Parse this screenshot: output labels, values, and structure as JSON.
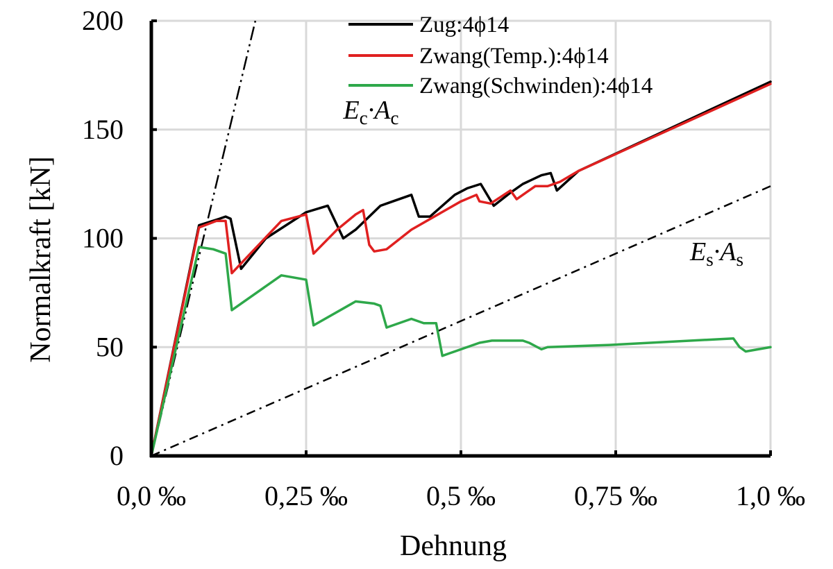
{
  "chart_data": {
    "type": "line",
    "xlabel": "Dehnung",
    "ylabel": "Normalkraft [kN]",
    "xlim": [
      0,
      1.0
    ],
    "ylim": [
      0,
      200
    ],
    "grid": true,
    "legend_position": "top-right",
    "x_ticks": [
      {
        "value": 0,
        "label": "0,0 ‰"
      },
      {
        "value": 0.25,
        "label": "0,25 ‰"
      },
      {
        "value": 0.5,
        "label": "0,5 ‰"
      },
      {
        "value": 0.75,
        "label": "0,75 ‰"
      },
      {
        "value": 1.0,
        "label": "1,0 ‰"
      }
    ],
    "y_ticks": [
      {
        "value": 0,
        "label": "0"
      },
      {
        "value": 50,
        "label": "50"
      },
      {
        "value": 100,
        "label": "100"
      },
      {
        "value": 150,
        "label": "150"
      },
      {
        "value": 200,
        "label": "200"
      }
    ],
    "series": [
      {
        "name": "Zug:4ϕ14",
        "color": "#000000",
        "points": [
          [
            0,
            0
          ],
          [
            0.077,
            106
          ],
          [
            0.11,
            109
          ],
          [
            0.12,
            110
          ],
          [
            0.128,
            109
          ],
          [
            0.145,
            86
          ],
          [
            0.185,
            100
          ],
          [
            0.25,
            112
          ],
          [
            0.285,
            115
          ],
          [
            0.31,
            100
          ],
          [
            0.33,
            104
          ],
          [
            0.37,
            115
          ],
          [
            0.39,
            117
          ],
          [
            0.42,
            120
          ],
          [
            0.432,
            110
          ],
          [
            0.45,
            110
          ],
          [
            0.49,
            120
          ],
          [
            0.51,
            123
          ],
          [
            0.532,
            125
          ],
          [
            0.553,
            115
          ],
          [
            0.58,
            121
          ],
          [
            0.6,
            125
          ],
          [
            0.63,
            129
          ],
          [
            0.645,
            130
          ],
          [
            0.655,
            122
          ],
          [
            0.69,
            131
          ],
          [
            1.0,
            172
          ]
        ]
      },
      {
        "name": "Zwang(Temp.):4ϕ14",
        "color": "#e02020",
        "points": [
          [
            0,
            0
          ],
          [
            0.077,
            105
          ],
          [
            0.105,
            108
          ],
          [
            0.12,
            108
          ],
          [
            0.13,
            84
          ],
          [
            0.21,
            108
          ],
          [
            0.25,
            111
          ],
          [
            0.262,
            93
          ],
          [
            0.3,
            104
          ],
          [
            0.33,
            111
          ],
          [
            0.342,
            113
          ],
          [
            0.352,
            97
          ],
          [
            0.36,
            94
          ],
          [
            0.38,
            95
          ],
          [
            0.42,
            104
          ],
          [
            0.5,
            117
          ],
          [
            0.525,
            120
          ],
          [
            0.53,
            117
          ],
          [
            0.548,
            116
          ],
          [
            0.58,
            122
          ],
          [
            0.59,
            118
          ],
          [
            0.62,
            124
          ],
          [
            0.64,
            124
          ],
          [
            0.66,
            126
          ],
          [
            0.69,
            131
          ],
          [
            1.0,
            171
          ]
        ]
      },
      {
        "name": "Zwang(Schwinden):4ϕ14",
        "color": "#2ea84a",
        "points": [
          [
            0,
            0
          ],
          [
            0.077,
            96
          ],
          [
            0.1,
            95
          ],
          [
            0.12,
            93
          ],
          [
            0.13,
            67
          ],
          [
            0.21,
            83
          ],
          [
            0.25,
            81
          ],
          [
            0.262,
            60
          ],
          [
            0.33,
            71
          ],
          [
            0.36,
            70
          ],
          [
            0.37,
            69
          ],
          [
            0.38,
            59
          ],
          [
            0.4,
            61
          ],
          [
            0.42,
            63
          ],
          [
            0.43,
            62
          ],
          [
            0.44,
            61
          ],
          [
            0.46,
            61
          ],
          [
            0.47,
            46
          ],
          [
            0.48,
            47
          ],
          [
            0.53,
            52
          ],
          [
            0.55,
            53
          ],
          [
            0.6,
            53
          ],
          [
            0.61,
            52
          ],
          [
            0.63,
            49
          ],
          [
            0.64,
            50
          ],
          [
            0.74,
            51
          ],
          [
            0.94,
            54
          ],
          [
            0.95,
            50
          ],
          [
            0.96,
            48
          ],
          [
            1.0,
            50
          ]
        ]
      }
    ],
    "reference_lines": [
      {
        "name": "Ec·Ac",
        "symbol": "E",
        "subscript": "c",
        "symbol2": "A",
        "subscript2": "c",
        "color": "#000000",
        "style": "dash-dot-dot",
        "points": [
          [
            0,
            0
          ],
          [
            0.168,
            200
          ]
        ],
        "label_at": [
          0.31,
          155
        ]
      },
      {
        "name": "Es·As",
        "symbol": "E",
        "subscript": "s",
        "symbol2": "A",
        "subscript2": "s",
        "color": "#000000",
        "style": "dash-dot",
        "points": [
          [
            0,
            0
          ],
          [
            1.0,
            124
          ]
        ],
        "label_at": [
          0.87,
          90
        ]
      }
    ]
  }
}
